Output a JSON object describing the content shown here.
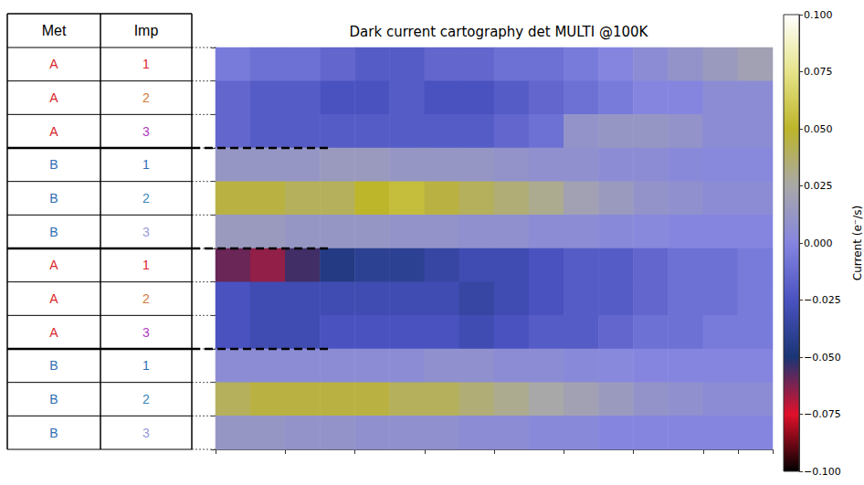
{
  "table": {
    "header": [
      "Met",
      "Imp"
    ],
    "rows": [
      {
        "met": "A",
        "imp": "1",
        "met_color": "#d9262b",
        "imp_color": "#e0202a"
      },
      {
        "met": "A",
        "imp": "2",
        "met_color": "#d9262b",
        "imp_color": "#d07a3a"
      },
      {
        "met": "A",
        "imp": "3",
        "met_color": "#d9262b",
        "imp_color": "#b03cc0"
      },
      {
        "met": "B",
        "imp": "1",
        "met_color": "#2f6eb5",
        "imp_color": "#2f6eb5"
      },
      {
        "met": "B",
        "imp": "2",
        "met_color": "#2f6eb5",
        "imp_color": "#3a86b8"
      },
      {
        "met": "B",
        "imp": "3",
        "met_color": "#2f6eb5",
        "imp_color": "#9a9ad8"
      },
      {
        "met": "A",
        "imp": "1",
        "met_color": "#d9262b",
        "imp_color": "#e0202a"
      },
      {
        "met": "A",
        "imp": "2",
        "met_color": "#d9262b",
        "imp_color": "#d07a3a"
      },
      {
        "met": "A",
        "imp": "3",
        "met_color": "#d9262b",
        "imp_color": "#b03cc0"
      },
      {
        "met": "B",
        "imp": "1",
        "met_color": "#2f6eb5",
        "imp_color": "#2f6eb5"
      },
      {
        "met": "B",
        "imp": "2",
        "met_color": "#2f6eb5",
        "imp_color": "#3a86b8"
      },
      {
        "met": "B",
        "imp": "3",
        "met_color": "#2f6eb5",
        "imp_color": "#9a9ad8"
      }
    ]
  },
  "chart_data": {
    "type": "heatmap",
    "title": "Dark current cartography det MULTI @100K",
    "tick_labels": false,
    "cells": [
      [
        -0.005,
        -0.01,
        -0.01,
        -0.015,
        -0.02,
        -0.02,
        -0.015,
        -0.015,
        -0.01,
        -0.01,
        -0.005,
        0,
        0.005,
        0.01,
        0.015,
        0.02
      ],
      [
        -0.015,
        -0.02,
        -0.02,
        -0.025,
        -0.025,
        -0.02,
        -0.025,
        -0.025,
        -0.02,
        -0.015,
        -0.01,
        -0.005,
        0,
        0,
        0.005,
        0.005
      ],
      [
        -0.015,
        -0.02,
        -0.02,
        -0.02,
        -0.02,
        -0.02,
        -0.02,
        -0.02,
        -0.015,
        -0.01,
        0.01,
        0.012,
        0.012,
        0.01,
        0.005,
        0.005
      ],
      [
        0.012,
        0.012,
        0.012,
        0.015,
        0.015,
        0.012,
        0.012,
        0.012,
        0.01,
        0.008,
        0.008,
        0.005,
        0.005,
        0.003,
        0.002,
        0.002
      ],
      [
        0.045,
        0.045,
        0.04,
        0.04,
        0.05,
        0.055,
        0.045,
        0.04,
        0.035,
        0.03,
        0.02,
        0.015,
        0.01,
        0.008,
        0.005,
        0.005
      ],
      [
        0.015,
        0.015,
        0.012,
        0.012,
        0.012,
        0.01,
        0.01,
        0.008,
        0.008,
        0.005,
        0.005,
        0.003,
        0.002,
        0,
        0,
        0
      ],
      [
        -0.06,
        -0.065,
        -0.055,
        -0.045,
        -0.04,
        -0.04,
        -0.035,
        -0.03,
        -0.03,
        -0.025,
        -0.02,
        -0.02,
        -0.015,
        -0.01,
        -0.01,
        -0.005
      ],
      [
        -0.025,
        -0.03,
        -0.03,
        -0.03,
        -0.03,
        -0.03,
        -0.03,
        -0.035,
        -0.03,
        -0.025,
        -0.02,
        -0.02,
        -0.015,
        -0.01,
        -0.01,
        -0.005
      ],
      [
        -0.025,
        -0.03,
        -0.03,
        -0.025,
        -0.025,
        -0.025,
        -0.025,
        -0.03,
        -0.025,
        -0.02,
        -0.02,
        -0.015,
        -0.01,
        -0.01,
        -0.005,
        -0.005
      ],
      [
        0.005,
        0.005,
        0.005,
        0.005,
        0.005,
        0.005,
        0.008,
        0.008,
        0.005,
        0.005,
        0.003,
        0.002,
        0,
        0,
        0,
        0
      ],
      [
        0.04,
        0.045,
        0.045,
        0.045,
        0.045,
        0.04,
        0.04,
        0.035,
        0.03,
        0.025,
        0.02,
        0.015,
        0.01,
        0.008,
        0.005,
        0.005
      ],
      [
        0.012,
        0.012,
        0.01,
        0.01,
        0.008,
        0.008,
        0.008,
        0.005,
        0.005,
        0.003,
        0.003,
        0,
        0,
        0,
        0,
        0
      ]
    ],
    "colorbar": {
      "label": "Current (e⁻/s)",
      "range": [
        -0.1,
        0.1
      ],
      "ticks": [
        {
          "value": -0.1,
          "label": "−0.100"
        },
        {
          "value": -0.075,
          "label": "−0.075"
        },
        {
          "value": -0.05,
          "label": "−0.050"
        },
        {
          "value": -0.025,
          "label": "−0.025"
        },
        {
          "value": 0,
          "label": "0.000"
        },
        {
          "value": 0.025,
          "label": "0.025"
        },
        {
          "value": 0.05,
          "label": "0.050"
        },
        {
          "value": 0.075,
          "label": "0.075"
        },
        {
          "value": 0.1,
          "label": "0.100"
        }
      ],
      "colors": [
        "#000000",
        "#e0102a",
        "#1a3575",
        "#4a52c0",
        "#8585e0",
        "#a8a8a8",
        "#bdb52a",
        "#e6e48a",
        "#ffffff"
      ]
    }
  }
}
